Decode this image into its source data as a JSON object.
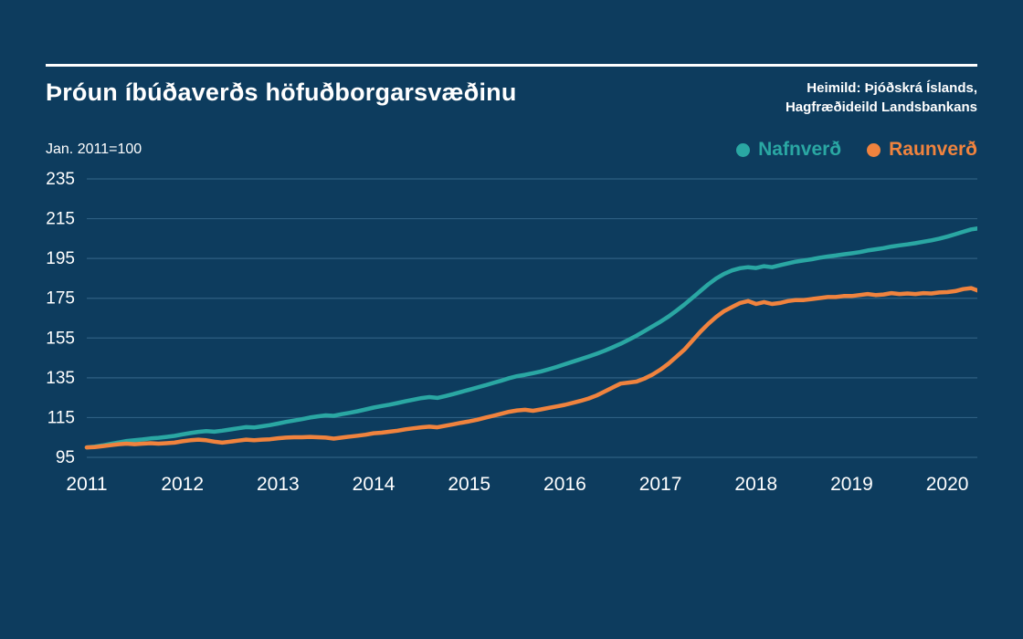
{
  "page": {
    "title": "Þróun íbúðaverðs höfuðborgarsvæðinu",
    "source_line1": "Heimild: Þjóðskrá Íslands,",
    "source_line2": "Hagfræðideild Landsbankans",
    "index_note": "Jan. 2011=100"
  },
  "colors": {
    "background": "#0d3c5e",
    "text": "#ffffff",
    "grid": "#2e5f82",
    "nafnverd": "#2aa7a3",
    "raunverd": "#f0833e"
  },
  "legend": [
    {
      "label": "Nafnverð",
      "color": "#2aa7a3"
    },
    {
      "label": "Raunverð",
      "color": "#f0833e"
    }
  ],
  "chart_data": {
    "type": "line",
    "title": "Þróun íbúðaverðs höfuðborgarsvæðinu",
    "subtitle": "Jan. 2011=100",
    "x_unit": "month",
    "x_start": "2011-01",
    "x_end": "2020-05",
    "x_tick_labels": [
      "2011",
      "2012",
      "2013",
      "2014",
      "2015",
      "2016",
      "2017",
      "2018",
      "2019",
      "2020"
    ],
    "months_per_tick": 12,
    "y_ticks": [
      95,
      115,
      135,
      155,
      175,
      195,
      215,
      235
    ],
    "ylim": [
      95,
      235
    ],
    "grid": true,
    "legend_position": "top-right",
    "series": [
      {
        "name": "Nafnverð",
        "color": "#2aa7a3",
        "values": [
          100.0,
          100.4,
          101.0,
          101.8,
          102.5,
          103.2,
          103.6,
          104.0,
          104.5,
          104.8,
          105.3,
          105.8,
          106.5,
          107.2,
          107.8,
          108.2,
          107.9,
          108.4,
          109.0,
          109.6,
          110.2,
          110.0,
          110.6,
          111.2,
          112.0,
          112.8,
          113.5,
          114.2,
          115.0,
          115.6,
          116.1,
          115.9,
          116.7,
          117.4,
          118.2,
          119.1,
          120.0,
          120.8,
          121.5,
          122.3,
          123.2,
          124.0,
          124.8,
          125.3,
          124.9,
          125.8,
          126.8,
          127.9,
          129.0,
          130.1,
          131.2,
          132.4,
          133.5,
          134.8,
          135.8,
          136.5,
          137.3,
          138.2,
          139.3,
          140.5,
          141.8,
          143.1,
          144.4,
          145.7,
          147.1,
          148.6,
          150.3,
          152.1,
          154.1,
          156.2,
          158.5,
          160.8,
          163.2,
          165.8,
          168.7,
          171.8,
          175.2,
          178.6,
          182.0,
          184.9,
          187.3,
          189.0,
          190.1,
          190.6,
          190.2,
          191.1,
          190.6,
          191.6,
          192.5,
          193.4,
          194.0,
          194.6,
          195.4,
          196.0,
          196.5,
          197.1,
          197.6,
          198.2,
          199.0,
          199.6,
          200.2,
          201.0,
          201.6,
          202.1,
          202.7,
          203.4,
          204.1,
          205.0,
          206.0,
          207.2,
          208.4,
          209.6,
          210.2
        ]
      },
      {
        "name": "Raunverð",
        "color": "#f0833e",
        "values": [
          100.0,
          100.2,
          100.6,
          101.1,
          101.6,
          101.9,
          101.6,
          101.9,
          102.1,
          101.9,
          102.1,
          102.4,
          103.1,
          103.6,
          103.9,
          103.6,
          102.9,
          102.4,
          102.9,
          103.4,
          103.9,
          103.6,
          103.9,
          104.1,
          104.6,
          104.9,
          105.1,
          105.1,
          105.3,
          105.1,
          104.9,
          104.4,
          104.9,
          105.4,
          105.9,
          106.4,
          107.1,
          107.4,
          107.9,
          108.4,
          109.1,
          109.6,
          110.1,
          110.4,
          110.1,
          110.9,
          111.6,
          112.4,
          113.1,
          113.9,
          114.9,
          115.9,
          116.9,
          117.9,
          118.6,
          118.9,
          118.4,
          119.1,
          119.9,
          120.6,
          121.4,
          122.4,
          123.4,
          124.6,
          126.1,
          128.1,
          130.1,
          132.1,
          132.6,
          133.1,
          134.6,
          136.6,
          139.1,
          142.1,
          145.6,
          149.1,
          153.6,
          158.1,
          162.1,
          165.6,
          168.6,
          170.6,
          172.6,
          173.6,
          172.1,
          173.1,
          172.1,
          172.6,
          173.6,
          174.1,
          174.1,
          174.6,
          175.1,
          175.6,
          175.6,
          176.1,
          176.1,
          176.6,
          177.1,
          176.6,
          176.9,
          177.6,
          177.1,
          177.4,
          177.1,
          177.6,
          177.4,
          177.9,
          178.1,
          178.6,
          179.6,
          180.1,
          178.6
        ]
      }
    ]
  }
}
